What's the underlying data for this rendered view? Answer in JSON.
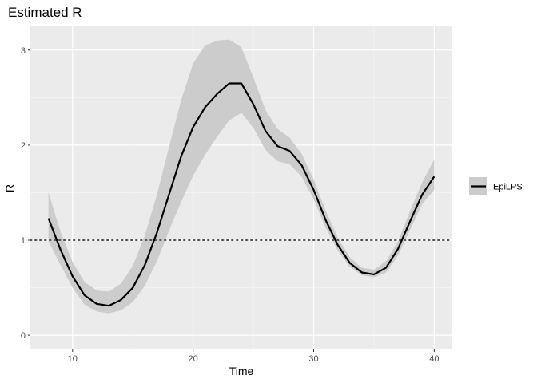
{
  "chart_data": {
    "type": "line",
    "title": "Estimated R",
    "xlabel": "Time",
    "ylabel": "R",
    "xlim": [
      6.5,
      41.5
    ],
    "ylim": [
      -0.15,
      3.25
    ],
    "x_ticks": [
      10,
      20,
      30,
      40
    ],
    "y_ticks": [
      0,
      1,
      2,
      3
    ],
    "x_tick_labels": [
      "10",
      "20",
      "30",
      "40"
    ],
    "y_tick_labels": [
      "0",
      "1",
      "2",
      "3"
    ],
    "grid": true,
    "reference_line": {
      "y": 1,
      "style": "dotted"
    },
    "legend_position": "right",
    "series": [
      {
        "name": "EpiLPS",
        "color": "#000000",
        "band_color": "#cccccc",
        "x": [
          8,
          9,
          10,
          11,
          12,
          13,
          14,
          15,
          16,
          17,
          18,
          19,
          20,
          21,
          22,
          23,
          24,
          25,
          26,
          27,
          28,
          29,
          30,
          31,
          32,
          33,
          34,
          35,
          36,
          37,
          38,
          39,
          40
        ],
        "y": [
          1.23,
          0.9,
          0.62,
          0.42,
          0.33,
          0.31,
          0.37,
          0.5,
          0.74,
          1.08,
          1.48,
          1.88,
          2.19,
          2.4,
          2.54,
          2.65,
          2.65,
          2.43,
          2.15,
          1.99,
          1.94,
          1.79,
          1.53,
          1.21,
          0.95,
          0.76,
          0.66,
          0.64,
          0.71,
          0.91,
          1.2,
          1.48,
          1.67
        ],
        "lower": [
          0.99,
          0.74,
          0.5,
          0.32,
          0.25,
          0.23,
          0.26,
          0.35,
          0.52,
          0.78,
          1.1,
          1.4,
          1.68,
          1.9,
          2.09,
          2.26,
          2.34,
          2.18,
          1.95,
          1.83,
          1.8,
          1.67,
          1.43,
          1.13,
          0.89,
          0.72,
          0.63,
          0.61,
          0.66,
          0.84,
          1.11,
          1.38,
          1.53
        ],
        "upper": [
          1.5,
          1.09,
          0.77,
          0.56,
          0.47,
          0.46,
          0.54,
          0.73,
          1.05,
          1.48,
          1.98,
          2.47,
          2.86,
          3.05,
          3.1,
          3.11,
          3.03,
          2.71,
          2.37,
          2.17,
          2.08,
          1.91,
          1.64,
          1.31,
          1.03,
          0.82,
          0.71,
          0.69,
          0.78,
          0.99,
          1.31,
          1.61,
          1.85
        ]
      }
    ]
  }
}
